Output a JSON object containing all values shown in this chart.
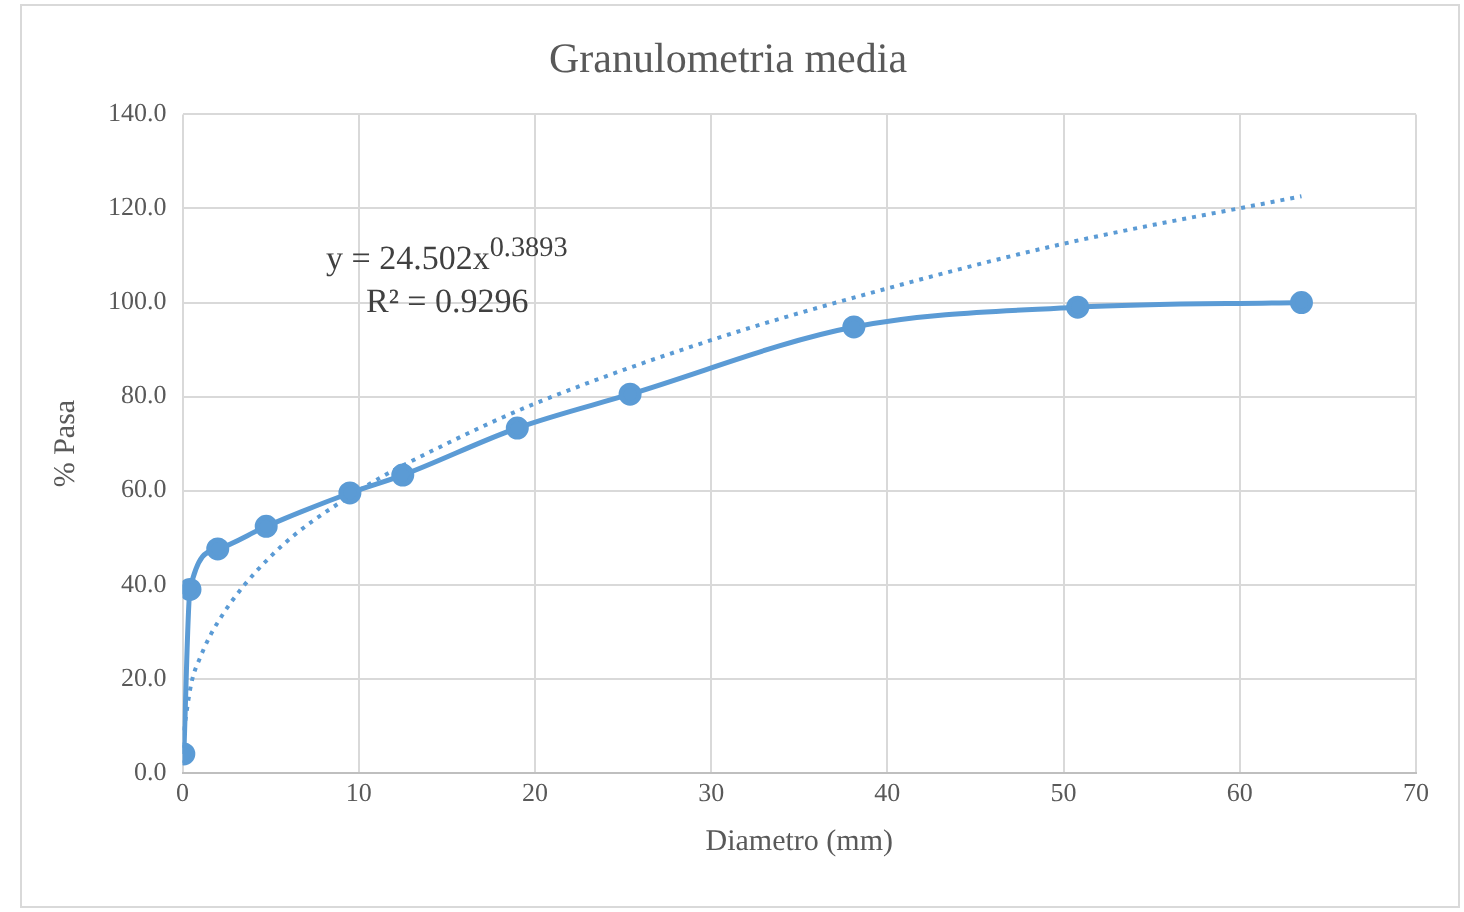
{
  "chart_data": {
    "type": "line",
    "title": "Granulometria media",
    "xlabel": "Diametro (mm)",
    "ylabel": "% Pasa",
    "series": [
      {
        "color": "#5b9bd5",
        "x": [
          0.075,
          0.425,
          2,
          4.75,
          9.5,
          12.5,
          19,
          25.4,
          38.1,
          50.8,
          63.5
        ],
        "values": [
          4,
          39,
          47.6,
          52.4,
          59.5,
          63.3,
          73.3,
          80.5,
          94.8,
          99,
          100
        ],
        "marker": "circle",
        "line_style": "solid"
      },
      {
        "type": "line",
        "color": "#5b9bd5",
        "x": [
          0.075,
          0.5,
          1,
          2,
          5,
          10,
          15,
          20,
          30,
          40,
          50,
          63.5
        ],
        "values": [
          9,
          19,
          24.5,
          32,
          46,
          60,
          70,
          78.5,
          92,
          103,
          112.5,
          122.6
        ],
        "marker": "none",
        "line_style": "dotted"
      }
    ],
    "xlim": [
      0,
      70
    ],
    "xticks": [
      0,
      10,
      20,
      30,
      40,
      50,
      60,
      70
    ],
    "ylim": [
      0,
      140
    ],
    "yticks": [
      {
        "value": 0,
        "label": "0.0"
      },
      {
        "value": 20,
        "label": "20.0"
      },
      {
        "value": 40,
        "label": "40.0"
      },
      {
        "value": 60,
        "label": "60.0"
      },
      {
        "value": 80,
        "label": "80.0"
      },
      {
        "value": 100,
        "label": "100.0"
      },
      {
        "value": 120,
        "label": "120.0"
      },
      {
        "value": 140,
        "label": "140.0"
      }
    ],
    "grid": true,
    "legend": false,
    "annotations": [
      "y = 24.502x$^{0.3893}$",
      "R² = 0.9296"
    ]
  }
}
